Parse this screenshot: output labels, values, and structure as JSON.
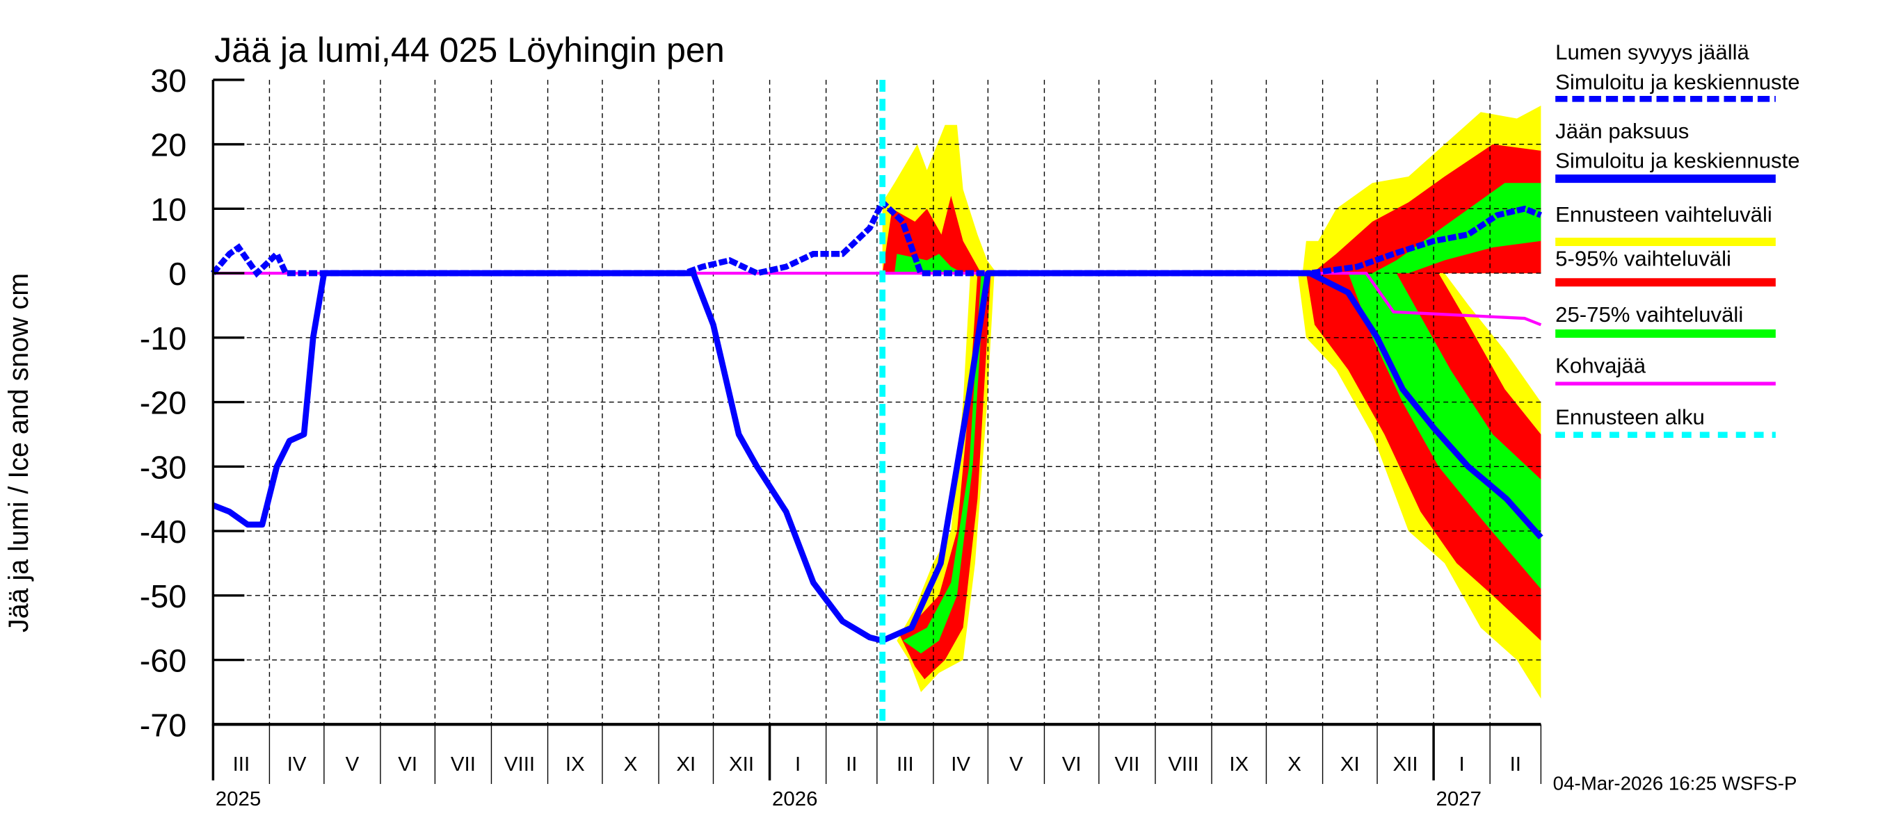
{
  "chart_data": {
    "type": "area",
    "title": "Jää ja lumi,44 025 Löyhingin pen",
    "ylabel": "Jää ja lumi / Ice and snow    cm",
    "xlabel": "",
    "ylim": [
      -70,
      30
    ],
    "yticks": [
      30,
      20,
      10,
      0,
      -10,
      -20,
      -30,
      -40,
      -50,
      -60,
      -70
    ],
    "ytick_labels": [
      "30",
      "20",
      "10",
      "0",
      "-10",
      "-20",
      "-30",
      "-40",
      "-50",
      "-60",
      "-70"
    ],
    "x_range": [
      "2025-03-01",
      "2027-03-01"
    ],
    "month_labels": [
      "III",
      "IV",
      "V",
      "VI",
      "VII",
      "VIII",
      "IX",
      "X",
      "XI",
      "XII",
      "I",
      "II",
      "III",
      "IV",
      "V",
      "VI",
      "VII",
      "VIII",
      "IX",
      "X",
      "XI",
      "XII",
      "I",
      "II"
    ],
    "year_labels": [
      {
        "label": "2025",
        "month_index": 0
      },
      {
        "label": "2026",
        "month_index": 10
      },
      {
        "label": "2027",
        "month_index": 22
      }
    ],
    "grid": true,
    "forecast_start": "2026-03-04",
    "legend_position": "right",
    "legend": [
      {
        "label": "Lumen syvyys jäällä\nSimuloitu ja keskiennuste",
        "color": "#0000ff",
        "style": "dashed-thick"
      },
      {
        "label": "Jään paksuus\nSimuloitu ja keskiennuste",
        "color": "#0000ff",
        "style": "solid-thick"
      },
      {
        "label": "Ennusteen vaihteluväli",
        "color": "#ffff00",
        "style": "band"
      },
      {
        "label": "5-95% vaihteluväli",
        "color": "#ff0000",
        "style": "band"
      },
      {
        "label": "25-75% vaihteluväli",
        "color": "#00ff00",
        "style": "band"
      },
      {
        "label": "Kohvajää",
        "color": "#ff00ff",
        "style": "solid"
      },
      {
        "label": "Ennusteen alku",
        "color": "#00ffff",
        "style": "dashed"
      }
    ],
    "series": [
      {
        "name": "Jään paksuus (ice thickness, plotted negative)",
        "x": [
          "2025-03-01",
          "2025-03-10",
          "2025-03-20",
          "2025-03-28",
          "2025-04-05",
          "2025-04-12",
          "2025-04-20",
          "2025-04-25",
          "2025-05-01",
          "2025-11-20",
          "2025-12-01",
          "2025-12-15",
          "2025-12-25",
          "2026-01-10",
          "2026-01-25",
          "2026-02-10",
          "2026-02-25",
          "2026-03-04",
          "2026-03-20",
          "2026-04-05",
          "2026-04-20",
          "2026-05-01",
          "2026-05-05",
          "2026-10-25",
          "2026-11-15",
          "2026-12-01",
          "2026-12-15",
          "2027-01-01",
          "2027-01-20",
          "2027-02-10",
          "2027-03-01"
        ],
        "values": [
          -36,
          -37,
          -39,
          -39,
          -30,
          -26,
          -25,
          -10,
          0,
          0,
          -8,
          -25,
          -30,
          -37,
          -48,
          -54,
          -56.5,
          -57,
          -55,
          -45,
          -20,
          0,
          0,
          0,
          -3,
          -10,
          -18,
          -24,
          -30,
          -35,
          -41
        ]
      },
      {
        "name": "Lumen syvyys jäällä (snow depth on ice)",
        "x": [
          "2025-03-01",
          "2025-03-10",
          "2025-03-15",
          "2025-03-25",
          "2025-04-05",
          "2025-04-10",
          "2025-11-15",
          "2025-11-25",
          "2025-12-10",
          "2025-12-25",
          "2026-01-10",
          "2026-01-25",
          "2026-02-10",
          "2026-02-25",
          "2026-03-04",
          "2026-03-15",
          "2026-03-25",
          "2026-10-25",
          "2026-11-20",
          "2026-12-10",
          "2027-01-01",
          "2027-01-20",
          "2027-02-05",
          "2027-02-20",
          "2027-03-01"
        ],
        "values": [
          0,
          3,
          4,
          0,
          3,
          0,
          0,
          1,
          2,
          0,
          1,
          3,
          3,
          7,
          11,
          8,
          0,
          0,
          1,
          3,
          5,
          6,
          9,
          10,
          9
        ]
      },
      {
        "name": "Kohvajää (slush ice)",
        "x": [
          "2025-03-01",
          "2026-11-25",
          "2026-12-10",
          "2027-02-20",
          "2027-03-01"
        ],
        "values": [
          0,
          0,
          -6,
          -7,
          -8
        ]
      }
    ],
    "bands": {
      "note": "Forecast ensemble ranges after 2026-03-04; upper bands for snow, lower bands for ice",
      "snow_upper_max_spring_2026": 23,
      "snow_upper_max_winter_2027": 26,
      "ice_lower_min_spring_2026": -65,
      "ice_lower_min_winter_2027": -66
    }
  },
  "footer": {
    "timestamp": "04-Mar-2026 16:25 WSFS-P"
  }
}
